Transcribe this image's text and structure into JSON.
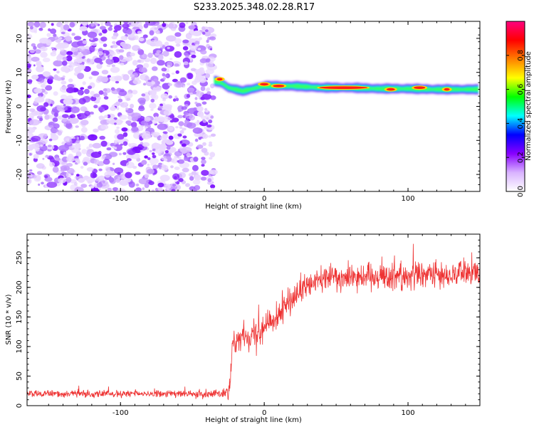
{
  "title": "S233.2025.348.02.28.R17",
  "chart_data": [
    {
      "type": "heatmap",
      "xlabel": "Height of straight line (km)",
      "ylabel": "Frequency (Hz)",
      "xlim": [
        -165,
        150
      ],
      "ylim": [
        -25,
        25
      ],
      "xticks": [
        -100,
        0,
        100
      ],
      "yticks": [
        -20,
        -10,
        0,
        10,
        20
      ],
      "colorbar": {
        "label": "Normalized spectral amplitude",
        "range": [
          0.0,
          1.0
        ],
        "ticks": [
          "0.0",
          "0.2",
          "0.4",
          "0.6",
          "0.8"
        ],
        "tick_values": [
          0,
          0.2,
          0.4,
          0.6,
          0.8
        ],
        "colors": [
          "#ffffff",
          "#d9b3ff",
          "#8800ff",
          "#0000ff",
          "#00ffff",
          "#00ff00",
          "#ffff00",
          "#ff7f00",
          "#ff0000",
          "#ff0080"
        ]
      },
      "noise_region": {
        "x_from": -165,
        "x_to": -35,
        "level": 0.1
      },
      "ridge": [
        {
          "x": -35,
          "freq": 7.5
        },
        {
          "x": -30,
          "freq": 7.0
        },
        {
          "x": -25,
          "freq": 5.5
        },
        {
          "x": -20,
          "freq": 5.0
        },
        {
          "x": -15,
          "freq": 4.5
        },
        {
          "x": -10,
          "freq": 5.0
        },
        {
          "x": -5,
          "freq": 5.5
        },
        {
          "x": 0,
          "freq": 6.0
        },
        {
          "x": 10,
          "freq": 6.0
        },
        {
          "x": 20,
          "freq": 6.0
        },
        {
          "x": 40,
          "freq": 5.5
        },
        {
          "x": 60,
          "freq": 5.5
        },
        {
          "x": 80,
          "freq": 5.2
        },
        {
          "x": 100,
          "freq": 5.2
        },
        {
          "x": 120,
          "freq": 5.0
        },
        {
          "x": 150,
          "freq": 5.0
        }
      ],
      "ridge_peaks": [
        {
          "x": -31,
          "freq": 8.0
        },
        {
          "x": 0,
          "freq": 6.5
        },
        {
          "x": 10,
          "freq": 6.0
        },
        {
          "x": 55,
          "freq": 5.5
        },
        {
          "x": 88,
          "freq": 5.0
        },
        {
          "x": 108,
          "freq": 5.5
        },
        {
          "x": 127,
          "freq": 5.0
        }
      ]
    },
    {
      "type": "line",
      "xlabel": "Height of straight line (km)",
      "ylabel": "SNR (10 * v/v)",
      "xlim": [
        -165,
        150
      ],
      "ylim": [
        0,
        290
      ],
      "xticks": [
        -100,
        0,
        100
      ],
      "yticks": [
        0,
        50,
        100,
        150,
        200,
        250
      ],
      "color": "#ee3333",
      "trend": [
        {
          "x": -165,
          "y": 20
        },
        {
          "x": -30,
          "y": 20
        },
        {
          "x": -24,
          "y": 22
        },
        {
          "x": -22,
          "y": 110
        },
        {
          "x": -10,
          "y": 120
        },
        {
          "x": 0,
          "y": 135
        },
        {
          "x": 10,
          "y": 155
        },
        {
          "x": 20,
          "y": 180
        },
        {
          "x": 30,
          "y": 200
        },
        {
          "x": 40,
          "y": 215
        },
        {
          "x": 60,
          "y": 220
        },
        {
          "x": 100,
          "y": 220
        },
        {
          "x": 150,
          "y": 225
        }
      ],
      "spread": [
        {
          "x": -165,
          "y": 8
        },
        {
          "x": -30,
          "y": 8
        },
        {
          "x": -22,
          "y": 25
        },
        {
          "x": 0,
          "y": 30
        },
        {
          "x": 30,
          "y": 30
        },
        {
          "x": 150,
          "y": 30
        }
      ]
    }
  ]
}
